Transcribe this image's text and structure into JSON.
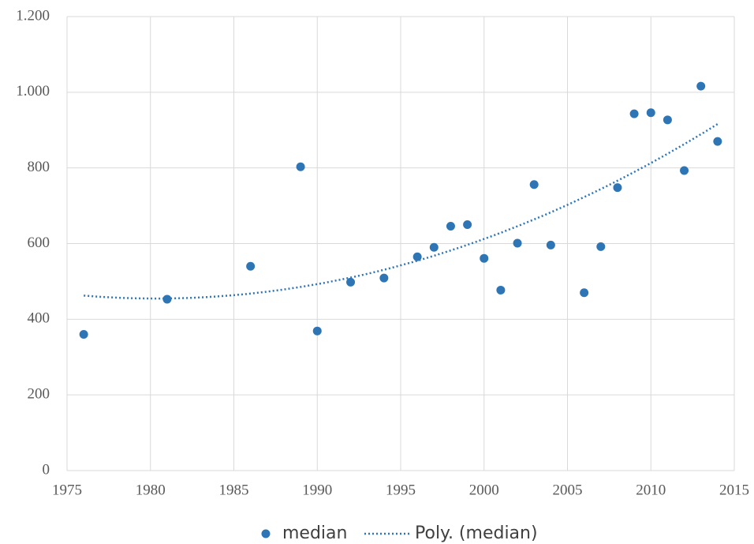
{
  "chart_data": {
    "type": "scatter",
    "series": [
      {
        "name": "median",
        "color": "#2e75b6",
        "x": [
          1976,
          1981,
          1986,
          1989,
          1990,
          1992,
          1994,
          1996,
          1997,
          1998,
          1999,
          2000,
          2001,
          2002,
          2003,
          2004,
          2006,
          2007,
          2008,
          2009,
          2010,
          2011,
          2012,
          2013,
          2014
        ],
        "values": [
          360,
          453,
          540,
          803,
          369,
          498,
          509,
          565,
          590,
          646,
          650,
          561,
          477,
          601,
          756,
          596,
          470,
          592,
          748,
          943,
          946,
          927,
          793,
          1016,
          870
        ]
      }
    ],
    "trendline": {
      "name": "Poly. (median)",
      "order": 2,
      "color": "#2e75b6"
    },
    "xlim": [
      1975,
      2015
    ],
    "xticks": [
      1975,
      1980,
      1985,
      1990,
      1995,
      2000,
      2005,
      2010,
      2015
    ],
    "ylim": [
      0,
      1200
    ],
    "yticks": [
      0,
      200,
      400,
      600,
      800,
      {
        "value": 1000,
        "label": "1.000"
      },
      {
        "value": 1200,
        "label": "1.200"
      }
    ],
    "grid": true,
    "legend": "bottom"
  }
}
